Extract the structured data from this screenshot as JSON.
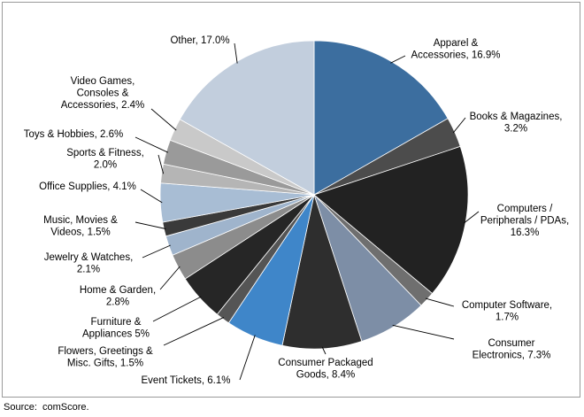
{
  "source_text": "Source:  comScore.",
  "chart_data": {
    "type": "pie",
    "title": "",
    "start_angle_deg": 0,
    "direction": "clockwise",
    "slices": [
      {
        "label": "Apparel & Accessories",
        "value": 16.9,
        "display": [
          "Apparel &",
          "Accessories, 16.9%"
        ],
        "color": "#3c6e9f"
      },
      {
        "label": "Books & Magazines",
        "value": 3.2,
        "display": [
          "Books & Magazines,",
          "3.2%"
        ],
        "color": "#4c4c4c"
      },
      {
        "label": "Computers / Peripherals / PDAs",
        "value": 16.3,
        "display": [
          "Computers /",
          "Peripherals / PDAs,",
          "16.3%"
        ],
        "color": "#222222"
      },
      {
        "label": "Computer Software",
        "value": 1.7,
        "display": [
          "Computer Software,",
          "1.7%"
        ],
        "color": "#6f6f6f"
      },
      {
        "label": "Consumer Electronics",
        "value": 7.3,
        "display": [
          "Consumer",
          "Electronics, 7.3%"
        ],
        "color": "#7d8ea6"
      },
      {
        "label": "Consumer Packaged Goods",
        "value": 8.4,
        "display": [
          "Consumer Packaged",
          "Goods, 8.4%"
        ],
        "color": "#2e2e2e"
      },
      {
        "label": "Event Tickets",
        "value": 6.1,
        "display": [
          "Event Tickets, 6.1%"
        ],
        "color": "#3f86c9"
      },
      {
        "label": "Flowers, Greetings & Misc. Gifts",
        "value": 1.5,
        "display": [
          "Flowers, Greetings &",
          "Misc. Gifts, 1.5%"
        ],
        "color": "#555555"
      },
      {
        "label": "Furniture & Appliances",
        "value": 5.0,
        "display": [
          "Furniture &",
          "Appliances 5%"
        ],
        "color": "#262626"
      },
      {
        "label": "Home & Garden",
        "value": 2.8,
        "display": [
          "Home & Garden,",
          "2.8%"
        ],
        "color": "#8c8c8c"
      },
      {
        "label": "Jewelry & Watches",
        "value": 2.1,
        "display": [
          "Jewelry & Watches,",
          "2.1%"
        ],
        "color": "#9fb4cc"
      },
      {
        "label": "Music, Movies & Videos",
        "value": 1.5,
        "display": [
          "Music, Movies &",
          "Videos, 1.5%"
        ],
        "color": "#3a3a3a"
      },
      {
        "label": "Office Supplies",
        "value": 4.1,
        "display": [
          "Office Supplies, 4.1%"
        ],
        "color": "#a8bdd4"
      },
      {
        "label": "Sports & Fitness",
        "value": 2.0,
        "display": [
          "Sports & Fitness,",
          "2.0%"
        ],
        "color": "#b5b5b5"
      },
      {
        "label": "Toys & Hobbies",
        "value": 2.6,
        "display": [
          "Toys & Hobbies, 2.6%"
        ],
        "color": "#9a9a9a"
      },
      {
        "label": "Video Games, Consoles & Accessories",
        "value": 2.4,
        "display": [
          "Video Games,",
          "Consoles &",
          "Accessories, 2.4%"
        ],
        "color": "#c9c9c9"
      },
      {
        "label": "Other",
        "value": 17.0,
        "display": [
          "Other, 17.0%"
        ],
        "color": "#c2cedd"
      }
    ]
  }
}
